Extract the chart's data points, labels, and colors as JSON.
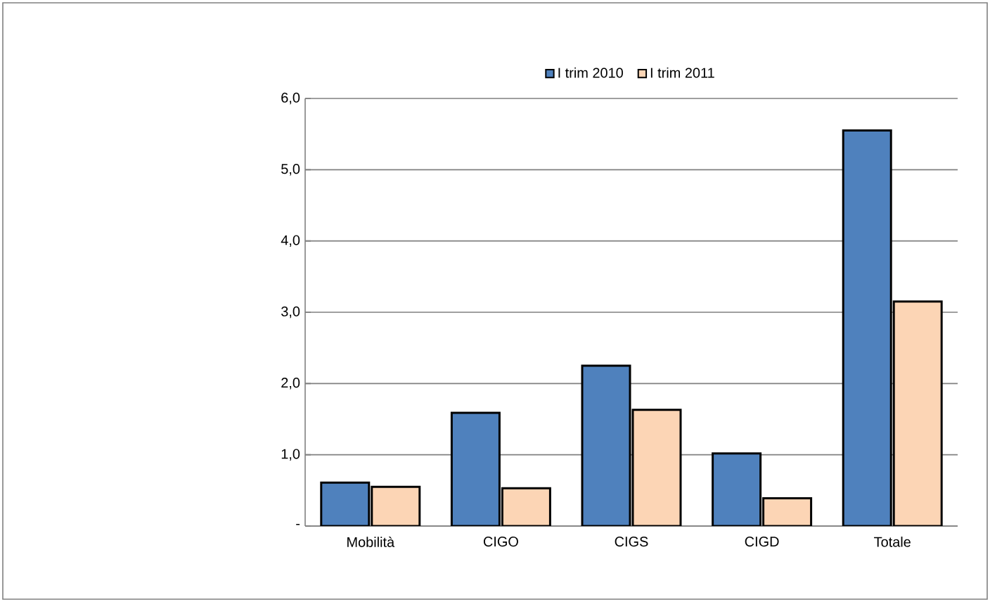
{
  "chart_data": {
    "type": "bar",
    "categories": [
      "Mobilità",
      "CIGO",
      "CIGS",
      "CIGD",
      "Totale"
    ],
    "series": [
      {
        "name": "I trim 2010",
        "color": "#4f81bd",
        "values": [
          0.61,
          1.59,
          2.25,
          1.02,
          5.55
        ]
      },
      {
        "name": "I trim 2011",
        "color": "#fcd5b5",
        "values": [
          0.55,
          0.53,
          1.63,
          0.39,
          3.15
        ]
      }
    ],
    "ylim": [
      0,
      6
    ],
    "yticks": [
      {
        "value": 0,
        "label": "-"
      },
      {
        "value": 1,
        "label": "1,0"
      },
      {
        "value": 2,
        "label": "2,0"
      },
      {
        "value": 3,
        "label": "3,0"
      },
      {
        "value": 4,
        "label": "4,0"
      },
      {
        "value": 5,
        "label": "5,0"
      },
      {
        "value": 6,
        "label": "6,0"
      }
    ],
    "grid": "y",
    "legend": "top"
  }
}
